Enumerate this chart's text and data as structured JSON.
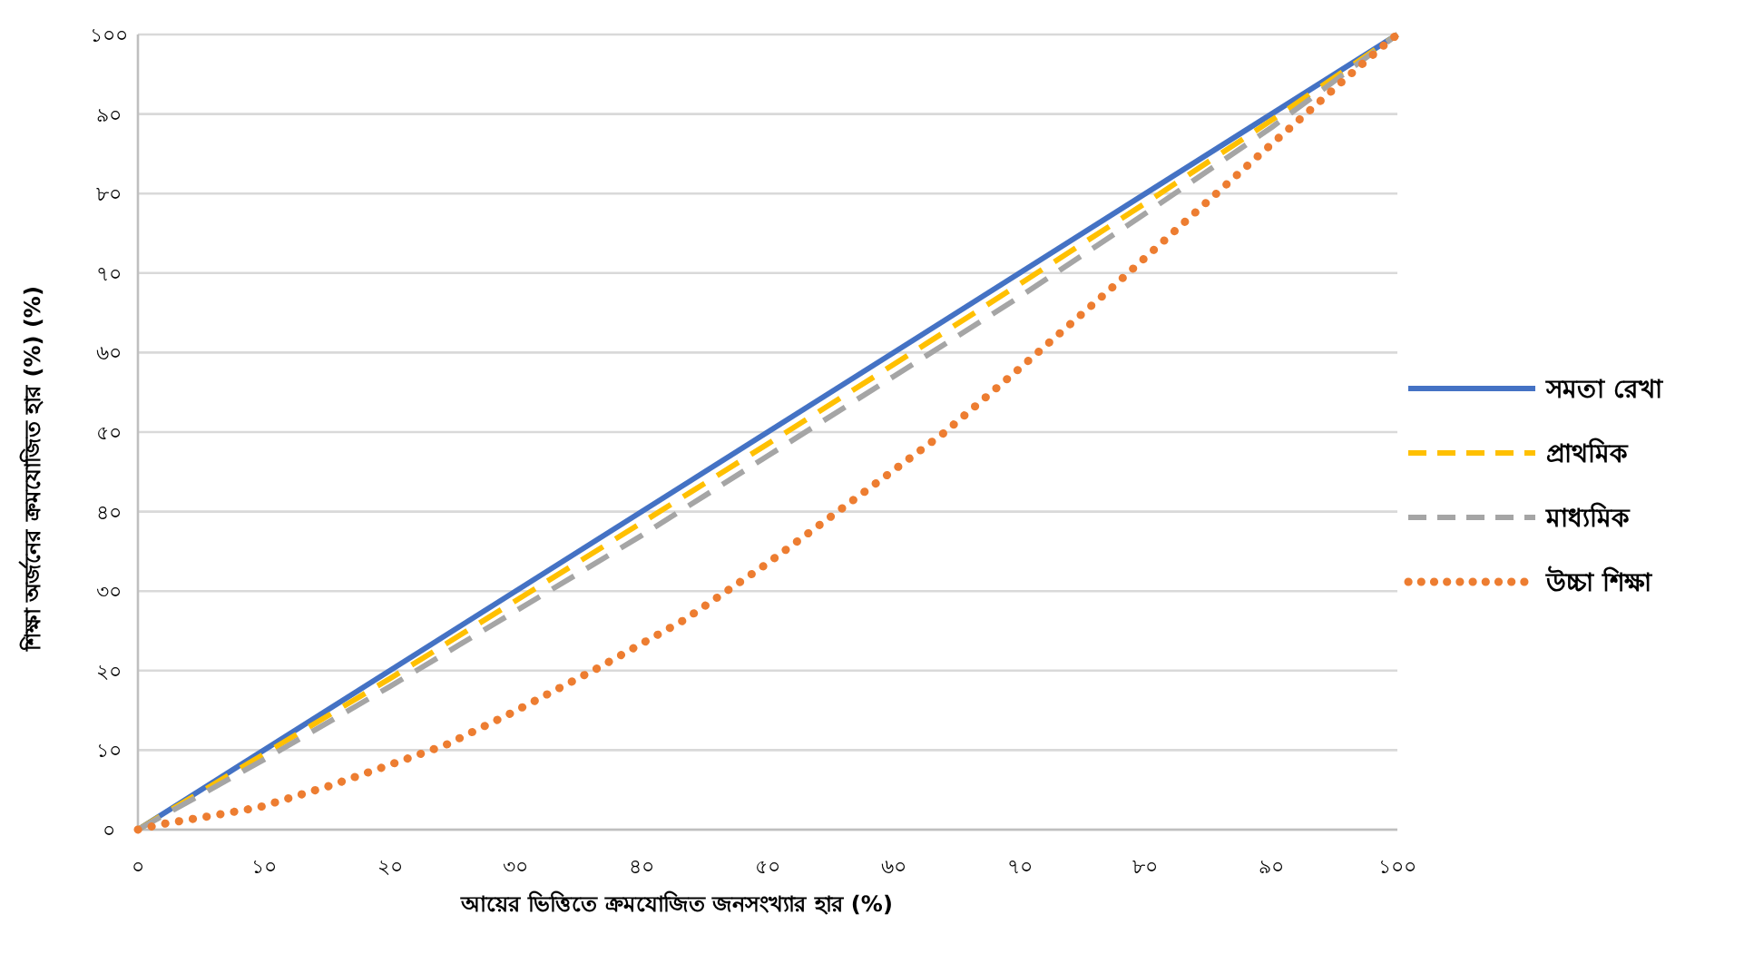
{
  "chart_data": {
    "type": "line",
    "xlabel": "আয়ের ভিত্তিতে ক্রমযোজিত জনসংখ্যার হার  (%)",
    "ylabel": "শিক্ষা অর্জনের ক্রমযোজিত হার  (%) (%)",
    "xlim": [
      0,
      100
    ],
    "ylim": [
      0,
      100
    ],
    "xticks": [
      {
        "value": 0,
        "label": "০"
      },
      {
        "value": 10,
        "label": "১০"
      },
      {
        "value": 20,
        "label": "২০"
      },
      {
        "value": 30,
        "label": "৩০"
      },
      {
        "value": 40,
        "label": "৪০"
      },
      {
        "value": 50,
        "label": "৫০"
      },
      {
        "value": 60,
        "label": "৬০"
      },
      {
        "value": 70,
        "label": "৭০"
      },
      {
        "value": 80,
        "label": "৮০"
      },
      {
        "value": 90,
        "label": "৯০"
      },
      {
        "value": 100,
        "label": "১০০"
      }
    ],
    "yticks": [
      {
        "value": 0,
        "label": "০"
      },
      {
        "value": 10,
        "label": "১০"
      },
      {
        "value": 20,
        "label": "২০"
      },
      {
        "value": 30,
        "label": "৩০"
      },
      {
        "value": 40,
        "label": "৪০"
      },
      {
        "value": 50,
        "label": "৫০"
      },
      {
        "value": 60,
        "label": "৬০"
      },
      {
        "value": 70,
        "label": "৭০"
      },
      {
        "value": 80,
        "label": "৮০"
      },
      {
        "value": 90,
        "label": "৯০"
      },
      {
        "value": 100,
        "label": "১০০"
      }
    ],
    "grid": "y",
    "legend": "right",
    "marker": "none",
    "series": [
      {
        "name": "সমতা রেখা",
        "color": "#4472c4",
        "line_style": "solid",
        "x": [
          0,
          100
        ],
        "values": [
          0,
          100
        ]
      },
      {
        "name": "প্রাথমিক",
        "color": "#ffc000",
        "line_style": "dashed",
        "x": [
          0,
          10,
          20,
          30,
          40,
          50,
          60,
          70,
          80,
          90,
          100
        ],
        "values": [
          0,
          9.5,
          19,
          28.8,
          38.6,
          48.5,
          58.5,
          68.6,
          78.8,
          89.2,
          100
        ]
      },
      {
        "name": "মাধ্যমিক",
        "color": "#a5a5a5",
        "line_style": "dashed",
        "x": [
          0,
          10,
          20,
          30,
          40,
          50,
          60,
          70,
          80,
          90,
          100
        ],
        "values": [
          0,
          8.8,
          18,
          27.5,
          37,
          47,
          57,
          67,
          77.5,
          88.3,
          100
        ]
      },
      {
        "name": "উচ্চা শিক্ষা",
        "color": "#ed7d31",
        "line_style": "dotted",
        "x": [
          0,
          1.9,
          5.7,
          9.6,
          15.2,
          20.8,
          24.5,
          29.7,
          36.6,
          43.4,
          49.9,
          57.7,
          64,
          70,
          77.3,
          83.1,
          89,
          93.3,
          96.2,
          99.2,
          100
        ],
        "values": [
          0,
          0.7,
          1.7,
          2.8,
          5.5,
          8.6,
          10.7,
          14.7,
          20.4,
          26.4,
          33.4,
          42.5,
          49.9,
          58,
          68.1,
          76.4,
          84.8,
          90.8,
          94.9,
          99,
          100
        ]
      }
    ]
  }
}
